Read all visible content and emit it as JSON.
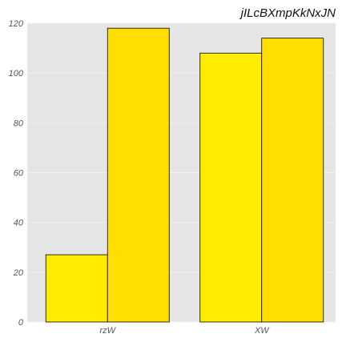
{
  "chart_data": {
    "type": "bar",
    "title": "jILcBXmpKkNxJN",
    "xlabel": "",
    "ylabel": "",
    "categories": [
      "rzW",
      "XW"
    ],
    "series": [
      {
        "values": [
          27,
          108
        ],
        "color": "#ffec00"
      },
      {
        "values": [
          118,
          114
        ],
        "color": "#ffde00"
      }
    ],
    "ylim": [
      0,
      120
    ],
    "yticks": [
      0,
      20,
      40,
      60,
      80,
      100,
      120
    ],
    "grid": true,
    "legend": "none",
    "plot_background": "#e5e5e5",
    "grid_color": "#f2f2f2",
    "bar_edge_color": "#000000"
  }
}
